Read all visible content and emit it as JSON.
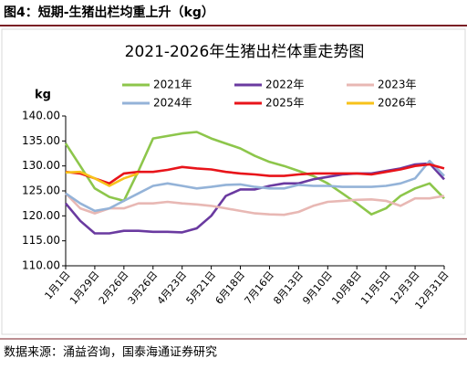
{
  "header": {
    "title": "图4：短期-生猪出栏均重上升（kg）",
    "source": "数据来源：涌益咨询，国泰海通证券研究"
  },
  "chart_data": {
    "type": "line",
    "title": "2021-2026年生猪出栏体重走势图",
    "y_label": "kg",
    "x": [
      0,
      2,
      4,
      6,
      8,
      10,
      12,
      14,
      16,
      18,
      20,
      22,
      24,
      26,
      28,
      30,
      32,
      34,
      36,
      38,
      40,
      42,
      44,
      46,
      48,
      50,
      52
    ],
    "xlim": [
      0,
      52
    ],
    "xticks": [
      {
        "value": 0,
        "label": "1月1日"
      },
      {
        "value": 4,
        "label": "1月29日"
      },
      {
        "value": 8,
        "label": "2月26日"
      },
      {
        "value": 12,
        "label": "3月26日"
      },
      {
        "value": 16,
        "label": "4月23日"
      },
      {
        "value": 20,
        "label": "5月21日"
      },
      {
        "value": 24,
        "label": "6月18日"
      },
      {
        "value": 28,
        "label": "7月16日"
      },
      {
        "value": 32,
        "label": "8月13日"
      },
      {
        "value": 36,
        "label": "9月10日"
      },
      {
        "value": 40,
        "label": "10月8日"
      },
      {
        "value": 44,
        "label": "11月5日"
      },
      {
        "value": 48,
        "label": "12月3日"
      },
      {
        "value": 52,
        "label": "12月31日"
      }
    ],
    "ylim": [
      110,
      140
    ],
    "yticks": [
      {
        "value": 110,
        "label": "110.00"
      },
      {
        "value": 115,
        "label": "115.00"
      },
      {
        "value": 120,
        "label": "120.00"
      },
      {
        "value": 125,
        "label": "125.00"
      },
      {
        "value": 130,
        "label": "130.00"
      },
      {
        "value": 135,
        "label": "135.00"
      },
      {
        "value": 140,
        "label": "140.00"
      }
    ],
    "series": [
      {
        "name": "2021年",
        "color": "#8dc64b",
        "values": [
          134.5,
          130,
          125.5,
          123.8,
          123,
          129,
          135.5,
          136,
          136.5,
          136.8,
          135.5,
          134.5,
          133.5,
          132,
          130.8,
          130,
          129,
          128,
          126.5,
          124.5,
          122.5,
          120.3,
          121.5,
          124,
          125.5,
          126.5,
          123.5
        ]
      },
      {
        "name": "2022年",
        "color": "#6a3aa0",
        "values": [
          122.5,
          119,
          116.5,
          116.5,
          117,
          117,
          116.8,
          116.8,
          116.7,
          117.5,
          120,
          124,
          125.3,
          125.3,
          126,
          126.5,
          126.5,
          127.3,
          127.8,
          128.3,
          128.5,
          128.5,
          129,
          129.5,
          130.3,
          130.5,
          127.3
        ]
      },
      {
        "name": "2023年",
        "color": "#e8b8b4",
        "values": [
          124.5,
          121.5,
          120.5,
          121.5,
          121.5,
          122.5,
          122.5,
          122.8,
          122.5,
          122.3,
          122,
          121.5,
          121,
          120.5,
          120.3,
          120.2,
          120.8,
          122,
          122.8,
          123,
          123.2,
          123.3,
          123,
          122,
          123.5,
          123.5,
          124
        ]
      },
      {
        "name": "2024年",
        "color": "#94b3d8",
        "values": [
          124.5,
          122.5,
          121,
          121.5,
          123,
          124.5,
          126,
          126.5,
          126,
          125.5,
          125.8,
          126.2,
          126.3,
          125.8,
          125.5,
          125.5,
          126.2,
          126,
          126,
          125.8,
          125.8,
          125.8,
          126,
          126.5,
          127.5,
          131,
          128
        ]
      },
      {
        "name": "2025年",
        "color": "#e8141a",
        "values": [
          128.8,
          128.5,
          127.5,
          126.5,
          128.5,
          128.8,
          128.8,
          129.2,
          129.8,
          129.5,
          129.3,
          128.8,
          128.5,
          128.3,
          128,
          128,
          128.3,
          128.5,
          128.5,
          128.5,
          128.5,
          128.3,
          128.8,
          129.3,
          130,
          130.3,
          129.5
        ]
      },
      {
        "name": "2026年",
        "color": "#f7c21a",
        "values": [
          128.7,
          128.8,
          127.5,
          126,
          127.5,
          128.5,
          null,
          null,
          null,
          null,
          null,
          null,
          null,
          null,
          null,
          null,
          null,
          null,
          null,
          null,
          null,
          null,
          null,
          null,
          null,
          null,
          null
        ]
      }
    ]
  }
}
